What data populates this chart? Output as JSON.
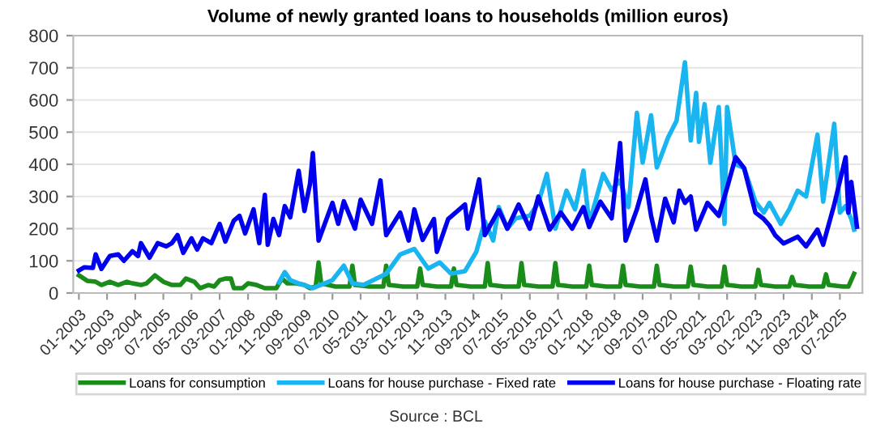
{
  "chart_data": {
    "type": "line",
    "title": "Volume of newly granted loans to households (million euros)",
    "annotations": [
      "Source : BCL"
    ],
    "xlim": [
      "2002-11",
      "2026-03"
    ],
    "xticks": [
      {
        "value": "2003-01",
        "label": "01-2003"
      },
      {
        "value": "2003-11",
        "label": "11-2003"
      },
      {
        "value": "2004-09",
        "label": "09-2004"
      },
      {
        "value": "2005-07",
        "label": "07-2005"
      },
      {
        "value": "2006-05",
        "label": "05-2006"
      },
      {
        "value": "2007-03",
        "label": "03-2007"
      },
      {
        "value": "2008-01",
        "label": "01-2008"
      },
      {
        "value": "2008-11",
        "label": "11-2008"
      },
      {
        "value": "2009-09",
        "label": "09-2009"
      },
      {
        "value": "2010-07",
        "label": "07-2010"
      },
      {
        "value": "2011-05",
        "label": "05-2011"
      },
      {
        "value": "2012-03",
        "label": "03-2012"
      },
      {
        "value": "2013-01",
        "label": "01-2013"
      },
      {
        "value": "2013-11",
        "label": "11-2013"
      },
      {
        "value": "2014-09",
        "label": "09-2014"
      },
      {
        "value": "2015-07",
        "label": "07-2015"
      },
      {
        "value": "2016-05",
        "label": "05-2016"
      },
      {
        "value": "2017-03",
        "label": "03-2017"
      },
      {
        "value": "2018-01",
        "label": "01-2018"
      },
      {
        "value": "2018-11",
        "label": "11-2018"
      },
      {
        "value": "2019-09",
        "label": "09-2019"
      },
      {
        "value": "2020-07",
        "label": "07-2020"
      },
      {
        "value": "2021-05",
        "label": "05-2021"
      },
      {
        "value": "2022-03",
        "label": "03-2022"
      },
      {
        "value": "2023-01",
        "label": "01-2023"
      },
      {
        "value": "2023-11",
        "label": "11-2023"
      },
      {
        "value": "2024-09",
        "label": "09-2024"
      },
      {
        "value": "2025-07",
        "label": "07-2025"
      }
    ],
    "ylim": [
      0,
      800
    ],
    "yticks": [
      0,
      100,
      200,
      300,
      400,
      500,
      600,
      700,
      800
    ],
    "grid": "y",
    "legend": "bottom",
    "marker": "none",
    "line_style": "solid",
    "series": [
      {
        "name": "Loans for consumption",
        "color": "#1a8c1a",
        "x": [
          "2003-01",
          "2003-04",
          "2003-07",
          "2003-09",
          "2003-12",
          "2004-03",
          "2004-06",
          "2004-08",
          "2004-11",
          "2005-01",
          "2005-04",
          "2005-07",
          "2005-10",
          "2006-01",
          "2006-03",
          "2006-06",
          "2006-08",
          "2006-11",
          "2007-01",
          "2007-03",
          "2007-05",
          "2007-07",
          "2007-08",
          "2007-11",
          "2008-01",
          "2008-04",
          "2008-07",
          "2008-11",
          "2009-01",
          "2009-03",
          "2009-06",
          "2009-09",
          "2009-11",
          "2010-01",
          "2010-02",
          "2010-03",
          "2010-08",
          "2011-01",
          "2011-02",
          "2011-03",
          "2011-08",
          "2012-01",
          "2012-02",
          "2012-03",
          "2012-08",
          "2013-01",
          "2013-02",
          "2013-03",
          "2013-08",
          "2014-01",
          "2014-02",
          "2014-03",
          "2014-08",
          "2015-01",
          "2015-02",
          "2015-03",
          "2015-08",
          "2016-01",
          "2016-02",
          "2016-03",
          "2016-08",
          "2017-01",
          "2017-02",
          "2017-03",
          "2017-08",
          "2018-01",
          "2018-02",
          "2018-03",
          "2018-08",
          "2019-01",
          "2019-02",
          "2019-03",
          "2019-08",
          "2020-01",
          "2020-02",
          "2020-03",
          "2020-08",
          "2021-01",
          "2021-02",
          "2021-03",
          "2021-08",
          "2022-01",
          "2022-02",
          "2022-03",
          "2022-08",
          "2023-01",
          "2023-02",
          "2023-03",
          "2023-08",
          "2024-01",
          "2024-02",
          "2024-03",
          "2024-08",
          "2025-01",
          "2025-02",
          "2025-03",
          "2025-08",
          "2025-10",
          "2025-12"
        ],
        "values": [
          55,
          38,
          35,
          25,
          35,
          25,
          35,
          30,
          25,
          30,
          55,
          35,
          25,
          25,
          45,
          35,
          15,
          25,
          20,
          40,
          45,
          45,
          15,
          15,
          30,
          25,
          15,
          15,
          45,
          30,
          30,
          25,
          15,
          20,
          95,
          30,
          20,
          20,
          85,
          25,
          20,
          20,
          85,
          25,
          20,
          20,
          76,
          25,
          20,
          20,
          76,
          25,
          20,
          20,
          93,
          25,
          20,
          20,
          93,
          25,
          20,
          20,
          93,
          25,
          20,
          20,
          85,
          25,
          20,
          20,
          85,
          25,
          20,
          20,
          85,
          25,
          20,
          20,
          82,
          25,
          20,
          20,
          82,
          25,
          20,
          20,
          72,
          25,
          20,
          20,
          50,
          25,
          20,
          20,
          58,
          25,
          20,
          20,
          60
        ]
      },
      {
        "name": "Loans for house purchase - Fixed rate",
        "color": "#19b5f0",
        "x": [
          "2008-12",
          "2009-02",
          "2009-04",
          "2009-07",
          "2009-09",
          "2009-12",
          "2010-07",
          "2010-11",
          "2011-02",
          "2011-06",
          "2012-02",
          "2012-07",
          "2012-12",
          "2013-03",
          "2013-05",
          "2013-09",
          "2014-01",
          "2014-06",
          "2014-10",
          "2015-01",
          "2015-04",
          "2015-06",
          "2015-09",
          "2015-12",
          "2016-05",
          "2016-08",
          "2016-11",
          "2017-02",
          "2017-06",
          "2017-09",
          "2017-12",
          "2018-02",
          "2018-07",
          "2018-10",
          "2019-01",
          "2019-04",
          "2019-07",
          "2019-09",
          "2019-12",
          "2020-02",
          "2020-06",
          "2020-09",
          "2020-12",
          "2021-02",
          "2021-04",
          "2021-05",
          "2021-07",
          "2021-09",
          "2021-12",
          "2022-02",
          "2022-03",
          "2022-06",
          "2022-09",
          "2023-01",
          "2023-04",
          "2023-06",
          "2023-10",
          "2024-01",
          "2024-04",
          "2024-07",
          "2024-11",
          "2025-01",
          "2025-05",
          "2025-07",
          "2025-09",
          "2025-11",
          "2025-12"
        ],
        "values": [
          33,
          65,
          40,
          30,
          25,
          15,
          40,
          85,
          30,
          25,
          60,
          120,
          137,
          100,
          76,
          95,
          60,
          68,
          128,
          223,
          163,
          267,
          200,
          232,
          240,
          280,
          370,
          200,
          318,
          260,
          380,
          215,
          370,
          320,
          350,
          267,
          560,
          405,
          552,
          390,
          483,
          535,
          717,
          474,
          622,
          470,
          587,
          405,
          578,
          215,
          578,
          400,
          388,
          284,
          250,
          280,
          215,
          260,
          318,
          300,
          492,
          284,
          526,
          250,
          270,
          230,
          197
        ]
      },
      {
        "name": "Loans for house purchase - Floating rate",
        "color": "#0000ee",
        "x": [
          "2003-01",
          "2003-03",
          "2003-06",
          "2003-07",
          "2003-09",
          "2003-12",
          "2004-03",
          "2004-05",
          "2004-08",
          "2004-10",
          "2004-11",
          "2005-02",
          "2005-05",
          "2005-08",
          "2005-10",
          "2005-12",
          "2006-02",
          "2006-05",
          "2006-07",
          "2006-09",
          "2006-12",
          "2007-03",
          "2007-05",
          "2007-08",
          "2007-10",
          "2007-12",
          "2008-03",
          "2008-05",
          "2008-07",
          "2008-08",
          "2008-10",
          "2008-12",
          "2009-02",
          "2009-04",
          "2009-07",
          "2009-09",
          "2009-11",
          "2009-12",
          "2010-02",
          "2010-07",
          "2010-09",
          "2010-11",
          "2011-03",
          "2011-05",
          "2011-09",
          "2011-12",
          "2012-02",
          "2012-07",
          "2012-10",
          "2012-12",
          "2013-03",
          "2013-07",
          "2013-08",
          "2013-12",
          "2014-06",
          "2014-07",
          "2014-11",
          "2015-01",
          "2015-06",
          "2015-09",
          "2016-01",
          "2016-05",
          "2016-08",
          "2016-12",
          "2017-04",
          "2017-08",
          "2017-12",
          "2018-02",
          "2018-06",
          "2018-10",
          "2019-01",
          "2019-03",
          "2019-07",
          "2019-10",
          "2019-12",
          "2020-02",
          "2020-05",
          "2020-08",
          "2020-10",
          "2020-12",
          "2021-02",
          "2021-04",
          "2021-08",
          "2021-12",
          "2022-03",
          "2022-06",
          "2022-09",
          "2023-01",
          "2023-04",
          "2023-06",
          "2023-08",
          "2023-11",
          "2024-04",
          "2024-07",
          "2024-11",
          "2025-01",
          "2025-05",
          "2025-09",
          "2025-10",
          "2025-11",
          "2026-01"
        ],
        "values": [
          70,
          80,
          78,
          120,
          75,
          115,
          120,
          100,
          130,
          115,
          155,
          110,
          155,
          145,
          155,
          180,
          125,
          170,
          135,
          170,
          155,
          215,
          160,
          225,
          240,
          185,
          260,
          155,
          305,
          150,
          230,
          180,
          270,
          235,
          380,
          255,
          340,
          435,
          163,
          280,
          215,
          285,
          200,
          290,
          215,
          350,
          180,
          250,
          163,
          260,
          165,
          230,
          128,
          230,
          275,
          200,
          353,
          180,
          258,
          200,
          275,
          200,
          300,
          197,
          250,
          200,
          267,
          205,
          284,
          232,
          466,
          163,
          260,
          353,
          240,
          163,
          293,
          220,
          318,
          280,
          300,
          197,
          280,
          240,
          327,
          422,
          388,
          250,
          230,
          210,
          180,
          154,
          175,
          145,
          197,
          150,
          275,
          422,
          250,
          345,
          206
        ]
      }
    ]
  }
}
